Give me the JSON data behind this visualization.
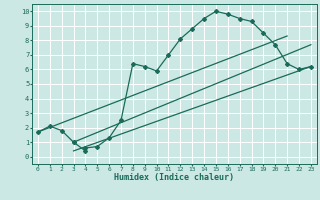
{
  "xlabel": "Humidex (Indice chaleur)",
  "bg_color": "#cce8e4",
  "line_color": "#1a6b5a",
  "grid_color": "#ffffff",
  "xlim": [
    -0.5,
    23.5
  ],
  "ylim": [
    -0.5,
    10.5
  ],
  "xticks": [
    0,
    1,
    2,
    3,
    4,
    5,
    6,
    7,
    8,
    9,
    10,
    11,
    12,
    13,
    14,
    15,
    16,
    17,
    18,
    19,
    20,
    21,
    22,
    23
  ],
  "yticks": [
    0,
    1,
    2,
    3,
    4,
    5,
    6,
    7,
    8,
    9,
    10
  ],
  "curve_x": [
    0,
    1,
    2,
    3,
    3,
    4,
    4,
    5,
    6,
    7,
    8,
    9,
    10,
    11,
    12,
    13,
    14,
    15,
    16,
    17,
    18,
    19,
    20,
    21,
    22,
    23
  ],
  "curve_y": [
    1.7,
    2.1,
    1.8,
    1.0,
    1.0,
    0.4,
    0.6,
    0.7,
    1.3,
    2.5,
    6.4,
    6.2,
    5.9,
    7.0,
    8.1,
    8.8,
    9.5,
    10.0,
    9.8,
    9.5,
    9.3,
    8.5,
    7.7,
    6.4,
    6.0,
    6.2
  ],
  "line1_x": [
    0,
    21
  ],
  "line1_y": [
    1.7,
    8.3
  ],
  "line2_x": [
    3,
    23
  ],
  "line2_y": [
    0.4,
    6.2
  ],
  "line3_x": [
    3,
    23
  ],
  "line3_y": [
    1.0,
    7.7
  ]
}
